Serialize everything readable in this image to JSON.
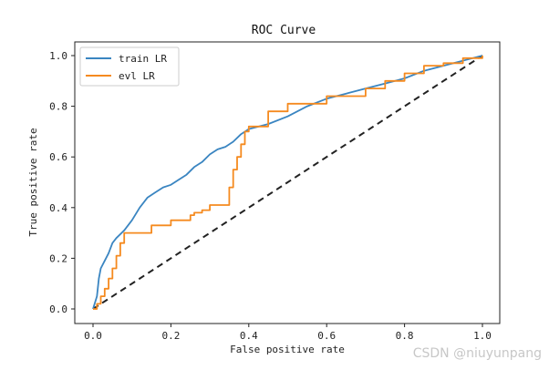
{
  "chart_data": {
    "type": "line",
    "title": "ROC Curve",
    "xlabel": "False positive rate",
    "ylabel": "True positive rate",
    "xlim": [
      0.0,
      1.0
    ],
    "ylim": [
      0.0,
      1.0
    ],
    "xticks": [
      "0.0",
      "0.2",
      "0.4",
      "0.6",
      "0.8",
      "1.0"
    ],
    "yticks": [
      "0.0",
      "0.2",
      "0.4",
      "0.6",
      "0.8",
      "1.0"
    ],
    "grid": false,
    "legend_position": "top-left",
    "series": [
      {
        "name": "train LR",
        "color": "#3a85c1",
        "step": false,
        "x": [
          0,
          0.01,
          0.015,
          0.02,
          0.03,
          0.04,
          0.05,
          0.06,
          0.08,
          0.1,
          0.12,
          0.14,
          0.16,
          0.18,
          0.2,
          0.22,
          0.24,
          0.26,
          0.28,
          0.3,
          0.32,
          0.34,
          0.36,
          0.38,
          0.4,
          0.45,
          0.5,
          0.55,
          0.6,
          0.65,
          0.7,
          0.75,
          0.8,
          0.85,
          0.9,
          0.95,
          1.0
        ],
        "y": [
          0,
          0.05,
          0.12,
          0.16,
          0.19,
          0.22,
          0.26,
          0.28,
          0.31,
          0.35,
          0.4,
          0.44,
          0.46,
          0.48,
          0.49,
          0.51,
          0.53,
          0.56,
          0.58,
          0.61,
          0.63,
          0.64,
          0.66,
          0.69,
          0.71,
          0.73,
          0.76,
          0.8,
          0.83,
          0.85,
          0.87,
          0.89,
          0.91,
          0.94,
          0.96,
          0.98,
          1.0
        ]
      },
      {
        "name": "evl LR",
        "color": "#f58a1f",
        "step": true,
        "x": [
          0,
          0.01,
          0.02,
          0.03,
          0.04,
          0.05,
          0.06,
          0.07,
          0.08,
          0.1,
          0.15,
          0.2,
          0.25,
          0.26,
          0.28,
          0.3,
          0.35,
          0.36,
          0.37,
          0.38,
          0.39,
          0.4,
          0.45,
          0.5,
          0.6,
          0.7,
          0.75,
          0.8,
          0.85,
          0.9,
          0.95,
          1.0
        ],
        "y": [
          0,
          0.02,
          0.05,
          0.08,
          0.12,
          0.16,
          0.21,
          0.26,
          0.3,
          0.3,
          0.33,
          0.35,
          0.37,
          0.38,
          0.39,
          0.41,
          0.48,
          0.55,
          0.6,
          0.65,
          0.7,
          0.72,
          0.78,
          0.81,
          0.84,
          0.87,
          0.9,
          0.93,
          0.96,
          0.97,
          0.99,
          1.0
        ]
      }
    ],
    "reference_line": {
      "name": "chance",
      "x": [
        0,
        1
      ],
      "y": [
        0,
        1
      ],
      "color": "#222222",
      "dashed": true
    }
  },
  "watermark": "CSDN @niuyunpang"
}
